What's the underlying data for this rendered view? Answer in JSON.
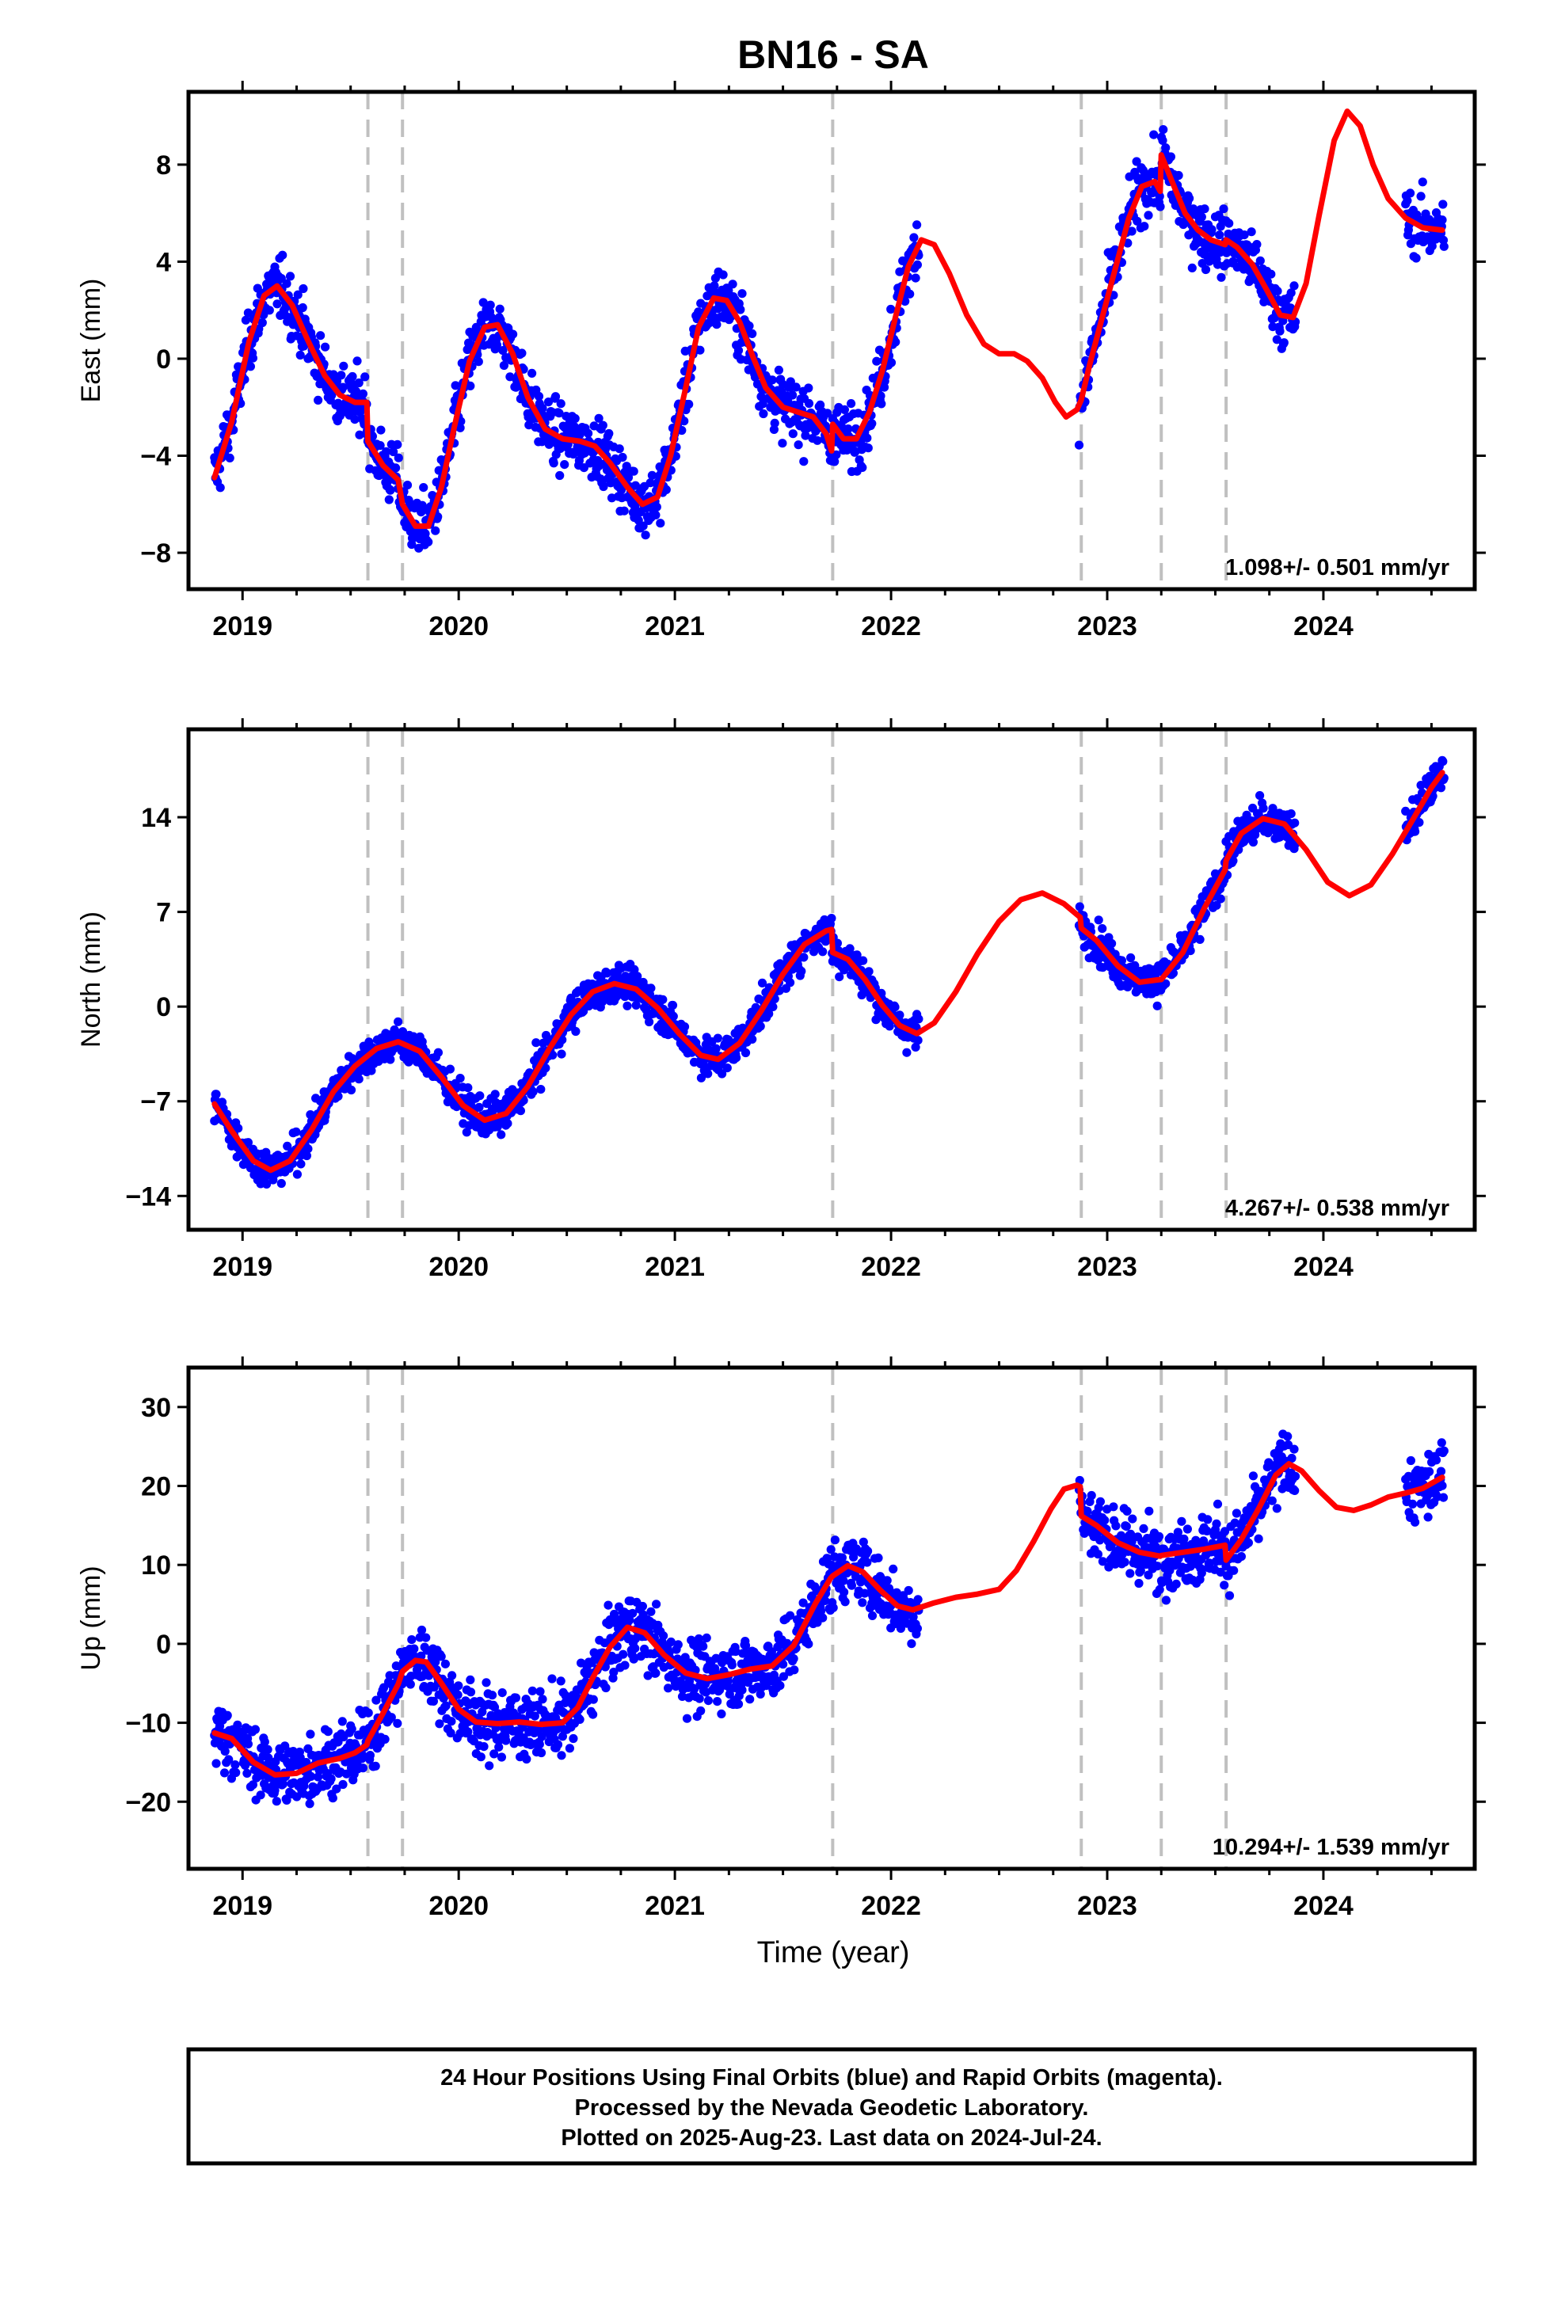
{
  "chart_data": {
    "type": "scatter",
    "title": "BN16 - SA",
    "xlabel": "Time (year)",
    "xlim": [
      2018.75,
      2024.7
    ],
    "x_ticks": [
      2019,
      2020,
      2021,
      2022,
      2023,
      2024
    ],
    "events": [
      2019.58,
      2019.74,
      2021.73,
      2022.88,
      2023.25,
      2023.55
    ],
    "marker_color": "#0000ff",
    "fit_color": "#ff0000",
    "event_color": "#c0c0c0",
    "panels": [
      {
        "name": "east",
        "ylabel": "East (mm)",
        "ylim": [
          -9.5,
          11
        ],
        "y_ticks": [
          "8",
          "4",
          "0",
          "-4",
          "-8"
        ],
        "rate": "1.098+/- 0.501 mm/yr",
        "fit": [
          [
            2018.87,
            -4.9
          ],
          [
            2018.95,
            -2.6
          ],
          [
            2019.03,
            0.7
          ],
          [
            2019.1,
            2.6
          ],
          [
            2019.16,
            3.0
          ],
          [
            2019.23,
            2.2
          ],
          [
            2019.3,
            0.8
          ],
          [
            2019.38,
            -0.7
          ],
          [
            2019.45,
            -1.5
          ],
          [
            2019.52,
            -1.8
          ],
          [
            2019.575,
            -1.8
          ],
          [
            2019.58,
            -3.4
          ],
          [
            2019.65,
            -4.4
          ],
          [
            2019.72,
            -5.0
          ],
          [
            2019.74,
            -6.0
          ],
          [
            2019.8,
            -6.9
          ],
          [
            2019.86,
            -6.9
          ],
          [
            2019.92,
            -5.3
          ],
          [
            2019.98,
            -2.8
          ],
          [
            2020.05,
            -0.1
          ],
          [
            2020.12,
            1.3
          ],
          [
            2020.18,
            1.4
          ],
          [
            2020.25,
            0.2
          ],
          [
            2020.32,
            -1.6
          ],
          [
            2020.4,
            -2.9
          ],
          [
            2020.48,
            -3.3
          ],
          [
            2020.56,
            -3.4
          ],
          [
            2020.63,
            -3.6
          ],
          [
            2020.7,
            -4.3
          ],
          [
            2020.78,
            -5.3
          ],
          [
            2020.85,
            -6.0
          ],
          [
            2020.92,
            -5.7
          ],
          [
            2020.98,
            -4.0
          ],
          [
            2021.05,
            -1.2
          ],
          [
            2021.11,
            1.3
          ],
          [
            2021.18,
            2.5
          ],
          [
            2021.24,
            2.4
          ],
          [
            2021.3,
            1.5
          ],
          [
            2021.36,
            0.1
          ],
          [
            2021.42,
            -1.2
          ],
          [
            2021.5,
            -2.0
          ],
          [
            2021.57,
            -2.2
          ],
          [
            2021.64,
            -2.4
          ],
          [
            2021.7,
            -3.1
          ],
          [
            2021.725,
            -3.8
          ],
          [
            2021.73,
            -2.7
          ],
          [
            2021.78,
            -3.3
          ],
          [
            2021.84,
            -3.3
          ],
          [
            2021.9,
            -2.2
          ],
          [
            2021.96,
            -0.5
          ],
          [
            2022.02,
            1.7
          ],
          [
            2022.08,
            3.8
          ],
          [
            2022.14,
            4.9
          ],
          [
            2022.2,
            4.7
          ],
          [
            2022.27,
            3.5
          ],
          [
            2022.35,
            1.8
          ],
          [
            2022.43,
            0.6
          ],
          [
            2022.5,
            0.2
          ],
          [
            2022.57,
            0.2
          ],
          [
            2022.63,
            -0.1
          ],
          [
            2022.7,
            -0.8
          ],
          [
            2022.76,
            -1.8
          ],
          [
            2022.81,
            -2.4
          ],
          [
            2022.86,
            -2.1
          ],
          [
            2022.88,
            -1.7
          ],
          [
            2022.92,
            -0.2
          ],
          [
            2022.98,
            1.8
          ],
          [
            2023.04,
            3.8
          ],
          [
            2023.1,
            5.8
          ],
          [
            2023.16,
            7.1
          ],
          [
            2023.22,
            7.3
          ],
          [
            2023.245,
            6.9
          ],
          [
            2023.25,
            8.4
          ],
          [
            2023.3,
            7.3
          ],
          [
            2023.36,
            6.0
          ],
          [
            2023.42,
            5.3
          ],
          [
            2023.48,
            4.9
          ],
          [
            2023.545,
            4.7
          ],
          [
            2023.55,
            4.9
          ],
          [
            2023.6,
            4.6
          ],
          [
            2023.67,
            3.9
          ],
          [
            2023.74,
            2.8
          ],
          [
            2023.8,
            1.8
          ],
          [
            2023.86,
            1.7
          ],
          [
            2023.92,
            3.1
          ],
          [
            2023.98,
            5.9
          ],
          [
            2024.05,
            9.0
          ],
          [
            2024.11,
            10.2
          ],
          [
            2024.17,
            9.6
          ],
          [
            2024.23,
            8.0
          ],
          [
            2024.3,
            6.6
          ],
          [
            2024.38,
            5.8
          ],
          [
            2024.46,
            5.4
          ],
          [
            2024.55,
            5.3
          ]
        ]
      },
      {
        "name": "north",
        "ylabel": "North (mm)",
        "ylim": [
          -16.5,
          20.5
        ],
        "y_ticks": [
          "14",
          "7",
          "0",
          "-7",
          "-14"
        ],
        "rate": "4.267+/- 0.538 mm/yr",
        "fit": [
          [
            2018.87,
            -7.2
          ],
          [
            2018.95,
            -9.2
          ],
          [
            2019.05,
            -11.4
          ],
          [
            2019.13,
            -12.1
          ],
          [
            2019.22,
            -11.4
          ],
          [
            2019.32,
            -9.1
          ],
          [
            2019.42,
            -6.3
          ],
          [
            2019.52,
            -4.4
          ],
          [
            2019.62,
            -3.1
          ],
          [
            2019.72,
            -2.6
          ],
          [
            2019.82,
            -3.3
          ],
          [
            2019.92,
            -5.2
          ],
          [
            2020.02,
            -7.3
          ],
          [
            2020.12,
            -8.4
          ],
          [
            2020.22,
            -7.9
          ],
          [
            2020.32,
            -5.9
          ],
          [
            2020.42,
            -3.1
          ],
          [
            2020.52,
            -0.6
          ],
          [
            2020.62,
            1.1
          ],
          [
            2020.72,
            1.7
          ],
          [
            2020.82,
            1.3
          ],
          [
            2020.92,
            -0.1
          ],
          [
            2021.02,
            -2.0
          ],
          [
            2021.12,
            -3.6
          ],
          [
            2021.2,
            -3.9
          ],
          [
            2021.3,
            -2.7
          ],
          [
            2021.4,
            -0.3
          ],
          [
            2021.5,
            2.4
          ],
          [
            2021.6,
            4.6
          ],
          [
            2021.7,
            5.6
          ],
          [
            2021.725,
            5.7
          ],
          [
            2021.73,
            4.0
          ],
          [
            2021.8,
            3.5
          ],
          [
            2021.88,
            2.0
          ],
          [
            2021.96,
            0.1
          ],
          [
            2022.04,
            -1.4
          ],
          [
            2022.12,
            -2.0
          ],
          [
            2022.2,
            -1.2
          ],
          [
            2022.3,
            1.1
          ],
          [
            2022.4,
            3.9
          ],
          [
            2022.5,
            6.3
          ],
          [
            2022.6,
            7.9
          ],
          [
            2022.7,
            8.4
          ],
          [
            2022.8,
            7.6
          ],
          [
            2022.875,
            6.6
          ],
          [
            2022.88,
            5.8
          ],
          [
            2022.95,
            4.9
          ],
          [
            2023.05,
            3.0
          ],
          [
            2023.15,
            1.8
          ],
          [
            2023.245,
            2.0
          ],
          [
            2023.25,
            2.0
          ],
          [
            2023.35,
            4.0
          ],
          [
            2023.45,
            7.3
          ],
          [
            2023.545,
            10.1
          ],
          [
            2023.55,
            10.8
          ],
          [
            2023.62,
            12.8
          ],
          [
            2023.72,
            13.9
          ],
          [
            2023.82,
            13.5
          ],
          [
            2023.92,
            11.6
          ],
          [
            2024.02,
            9.2
          ],
          [
            2024.12,
            8.2
          ],
          [
            2024.22,
            9.0
          ],
          [
            2024.32,
            11.3
          ],
          [
            2024.42,
            14.0
          ],
          [
            2024.5,
            16.2
          ],
          [
            2024.55,
            17.3
          ]
        ]
      },
      {
        "name": "up",
        "ylabel": "Up (mm)",
        "ylim": [
          -28.5,
          35
        ],
        "y_ticks": [
          "30",
          "20",
          "10",
          "0",
          "-10",
          "-20"
        ],
        "rate": "10.294+/- 1.539 mm/yr",
        "fit": [
          [
            2018.87,
            -11.3
          ],
          [
            2018.95,
            -12.0
          ],
          [
            2019.05,
            -15.0
          ],
          [
            2019.15,
            -16.6
          ],
          [
            2019.25,
            -16.4
          ],
          [
            2019.35,
            -15.1
          ],
          [
            2019.45,
            -14.5
          ],
          [
            2019.52,
            -13.8
          ],
          [
            2019.575,
            -12.8
          ],
          [
            2019.58,
            -12.3
          ],
          [
            2019.65,
            -8.8
          ],
          [
            2019.72,
            -5.1
          ],
          [
            2019.74,
            -3.5
          ],
          [
            2019.8,
            -2.1
          ],
          [
            2019.85,
            -2.3
          ],
          [
            2019.92,
            -5.0
          ],
          [
            2020.0,
            -8.3
          ],
          [
            2020.08,
            -9.9
          ],
          [
            2020.18,
            -10.1
          ],
          [
            2020.28,
            -9.9
          ],
          [
            2020.38,
            -10.2
          ],
          [
            2020.48,
            -10.0
          ],
          [
            2020.55,
            -8.1
          ],
          [
            2020.62,
            -4.3
          ],
          [
            2020.7,
            -0.4
          ],
          [
            2020.78,
            2.1
          ],
          [
            2020.86,
            1.4
          ],
          [
            2020.95,
            -1.4
          ],
          [
            2021.05,
            -3.7
          ],
          [
            2021.15,
            -4.4
          ],
          [
            2021.25,
            -3.9
          ],
          [
            2021.35,
            -3.2
          ],
          [
            2021.45,
            -2.8
          ],
          [
            2021.55,
            -0.2
          ],
          [
            2021.65,
            5.1
          ],
          [
            2021.72,
            8.3
          ],
          [
            2021.73,
            8.6
          ],
          [
            2021.8,
            9.9
          ],
          [
            2021.87,
            9.1
          ],
          [
            2021.95,
            6.8
          ],
          [
            2022.03,
            4.8
          ],
          [
            2022.1,
            4.3
          ],
          [
            2022.2,
            5.2
          ],
          [
            2022.3,
            5.9
          ],
          [
            2022.4,
            6.3
          ],
          [
            2022.5,
            6.9
          ],
          [
            2022.58,
            9.3
          ],
          [
            2022.66,
            13.0
          ],
          [
            2022.74,
            17.1
          ],
          [
            2022.8,
            19.6
          ],
          [
            2022.86,
            20.1
          ],
          [
            2022.875,
            19.9
          ],
          [
            2022.88,
            16.2
          ],
          [
            2022.95,
            15.0
          ],
          [
            2023.05,
            12.8
          ],
          [
            2023.15,
            11.6
          ],
          [
            2023.245,
            11.1
          ],
          [
            2023.25,
            11.2
          ],
          [
            2023.35,
            11.6
          ],
          [
            2023.45,
            12.0
          ],
          [
            2023.545,
            12.5
          ],
          [
            2023.55,
            10.6
          ],
          [
            2023.62,
            13.2
          ],
          [
            2023.7,
            17.1
          ],
          [
            2023.78,
            21.4
          ],
          [
            2023.84,
            22.8
          ],
          [
            2023.9,
            21.9
          ],
          [
            2023.98,
            19.4
          ],
          [
            2024.06,
            17.3
          ],
          [
            2024.14,
            16.9
          ],
          [
            2024.22,
            17.6
          ],
          [
            2024.3,
            18.6
          ],
          [
            2024.38,
            19.1
          ],
          [
            2024.46,
            19.7
          ],
          [
            2024.55,
            21.1
          ]
        ]
      }
    ]
  },
  "footer": {
    "line1": "24 Hour Positions Using Final Orbits (blue) and Rapid Orbits (magenta).",
    "line2": "Processed by the Nevada Geodetic Laboratory.",
    "line3": "Plotted on 2025-Aug-23. Last data on 2024-Jul-24."
  }
}
